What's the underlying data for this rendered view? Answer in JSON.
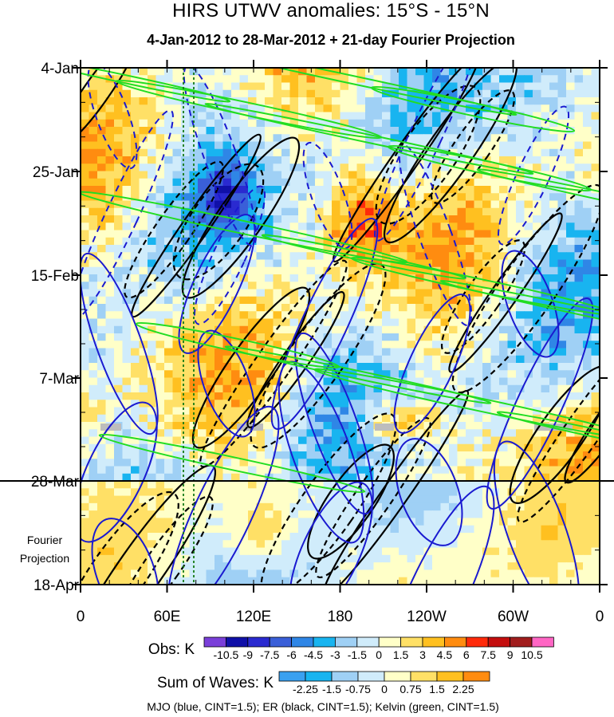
{
  "title": "HIRS UTWV anomalies: 15°S - 15°N",
  "subtitle": "4-Jan-2012 to 28-Mar-2012 + 21-day Fourier Projection",
  "chart_data": {
    "type": "heatmap",
    "xlabel": "",
    "ylabel": "",
    "x_ticks": [
      "0",
      "60E",
      "120E",
      "180",
      "120W",
      "60W",
      "0"
    ],
    "y_ticks": [
      "4-Jan",
      "25-Jan",
      "15-Feb",
      "7-Mar",
      "28-Mar",
      "18-Apr"
    ],
    "projection_label": [
      "Fourier",
      "Projection"
    ],
    "obs_end_date": "28-Mar",
    "obs_legend": {
      "title": "Obs: K",
      "levels": [
        "-10.5",
        "-9",
        "-7.5",
        "-6",
        "-4.5",
        "-3",
        "-1.5",
        "0",
        "1.5",
        "3",
        "4.5",
        "6",
        "7.5",
        "9",
        "10.5"
      ],
      "colors": [
        "#7a3fd9",
        "#1010a8",
        "#2a2ad0",
        "#3a5fd8",
        "#2f86e6",
        "#18b4f0",
        "#9fd0f5",
        "#d0ecfb",
        "#ffffc8",
        "#ffe066",
        "#ffc020",
        "#ff8c10",
        "#ff2a0a",
        "#c40e0e",
        "#a11d1d",
        "#ff66c4"
      ]
    },
    "waves_legend": {
      "title": "Sum of Waves: K",
      "levels": [
        "-2.25",
        "-1.5",
        "-0.75",
        "0",
        "0.75",
        "1.5",
        "2.25"
      ],
      "colors": [
        "#3aa0f0",
        "#18b4f0",
        "#9fd0f5",
        "#d0ecfb",
        "#ffffc8",
        "#ffe066",
        "#ffc020",
        "#ff8c10"
      ]
    },
    "contour_series": [
      {
        "name": "MJO",
        "color": "#1a1ad0",
        "cint": 1.5
      },
      {
        "name": "ER",
        "color": "#000000",
        "cint": 1.5
      },
      {
        "name": "Kelvin",
        "color": "#22dd22",
        "cint": 1.5
      }
    ]
  },
  "footer": "MJO (blue, CINT=1.5); ER (black, CINT=1.5); Kelvin (green, CINT=1.5)"
}
